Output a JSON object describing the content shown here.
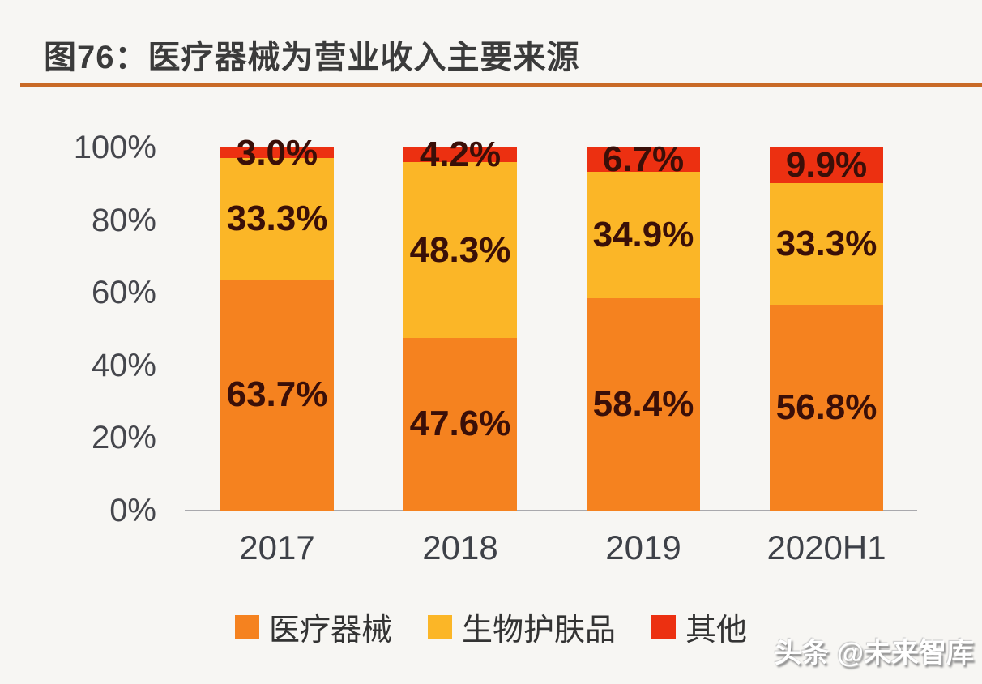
{
  "figure": {
    "title": "图76：医疗器械为营业收入主要来源",
    "watermark": "头条 @未来智库"
  },
  "chart_data": {
    "type": "bar",
    "stacked": true,
    "title": "图76：医疗器械为营业收入主要来源",
    "categories": [
      "2017",
      "2018",
      "2019",
      "2020H1"
    ],
    "series": [
      {
        "key": "medical-devices",
        "name": "医疗器械",
        "color": "#F5821F",
        "values": [
          63.7,
          47.6,
          58.4,
          56.8
        ]
      },
      {
        "key": "bio-skincare",
        "name": "生物护肤品",
        "color": "#FBB627",
        "values": [
          33.3,
          48.3,
          34.9,
          33.3
        ]
      },
      {
        "key": "other",
        "name": "其他",
        "color": "#EC3011",
        "values": [
          3.0,
          4.2,
          6.7,
          9.9
        ]
      }
    ],
    "value_suffix": "%",
    "xlabel": "",
    "ylabel": "",
    "y_ticks": [
      "100%",
      "80%",
      "60%",
      "40%",
      "20%",
      "0%"
    ],
    "ylim": [
      0,
      100
    ],
    "grid": false,
    "legend_position": "bottom",
    "data_label_color": "#3A0F08",
    "axis_text_color": "#45464C"
  },
  "style": {
    "background": "#F7F6F3",
    "title_color": "#3B3B3B",
    "title_rule_color": "#C96A26",
    "baseline_color": "#A9A9AD",
    "watermark_color": "#FFFFFF"
  }
}
